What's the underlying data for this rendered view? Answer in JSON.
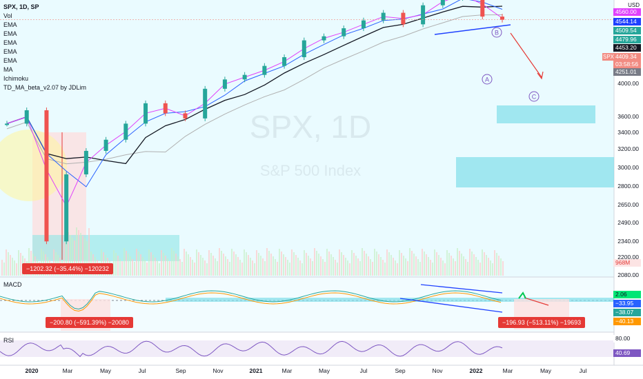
{
  "legend": {
    "symbol": "SPX, 1D, SP",
    "items": [
      "Vol",
      "EMA",
      "EMA",
      "EMA",
      "EMA",
      "EMA",
      "MA",
      "Ichimoku",
      "TD_MA_beta_v2.07 by JDLim"
    ]
  },
  "currency": "USD",
  "pane_labels": {
    "macd": "MACD",
    "rsi": "RSI"
  },
  "watermark": {
    "symbol": "SPX, 1D",
    "name": "S&P 500 Index"
  },
  "annotations": {
    "wave_a": "A",
    "wave_b": "B",
    "wave_c": "C"
  },
  "measure_boxes": {
    "price": "−1202.32 (−35.44%) −120232",
    "macd_left": "−200.80 (−591.39%) −20080",
    "macd_right": "−196.93 (−513.11%) −19693"
  },
  "price_tags": [
    {
      "text": "4560.00",
      "color": "#e040fb"
    },
    {
      "text": "4544.14",
      "color": "#1e40ff"
    },
    {
      "text": "4509.54",
      "color": "#26a69a"
    },
    {
      "text": "4479.96",
      "color": "#26a69a"
    },
    {
      "text": "4453.20",
      "color": "#131722"
    },
    {
      "text": "4409.34",
      "color": "#f28b82"
    },
    {
      "text": "03:58:56",
      "color": "#f28b82"
    },
    {
      "text": "4251.01",
      "color": "#787b86"
    },
    {
      "text": "968M",
      "color": "#fce4e4"
    }
  ],
  "spx_tag": "SPX",
  "macd_tags": [
    {
      "text": "2.06",
      "color": "#00e676"
    },
    {
      "text": "−33.95",
      "color": "#2962ff"
    },
    {
      "text": "−38.07",
      "color": "#26a69a"
    },
    {
      "text": "−40.13",
      "color": "#ff9800"
    }
  ],
  "rsi_tags": [
    {
      "text": "80.00",
      "color": "#ffffff"
    },
    {
      "text": "40.69",
      "color": "#7e57c2"
    }
  ],
  "y_axis_labels": [
    "4000.00",
    "3600.00",
    "3400.00",
    "3200.00",
    "3000.00",
    "2800.00",
    "2650.00",
    "2490.00",
    "2340.00",
    "2200.00",
    "2080.00"
  ],
  "x_axis_labels": [
    "2020",
    "Mar",
    "May",
    "Jul",
    "Sep",
    "Nov",
    "2021",
    "Mar",
    "May",
    "Jul",
    "Sep",
    "Nov",
    "2022",
    "Mar",
    "May",
    "Jul"
  ],
  "chart_data": {
    "type": "line",
    "title": "SPX, 1D, SP",
    "ylabel": "USD",
    "y_scale": "log",
    "ylim": [
      2080,
      4560
    ],
    "x": [
      "2020-01",
      "2020-02",
      "2020-03",
      "2020-04",
      "2020-05",
      "2020-06",
      "2020-07",
      "2020-08",
      "2020-09",
      "2020-10",
      "2020-11",
      "2020-12",
      "2021-01",
      "2021-02",
      "2021-03",
      "2021-04",
      "2021-05",
      "2021-06",
      "2021-07",
      "2021-08",
      "2021-09",
      "2021-10",
      "2021-11",
      "2021-12",
      "2022-01",
      "2022-02"
    ],
    "series": [
      {
        "values": [
          3250,
          3380,
          2300,
          2800,
          3000,
          3100,
          3250,
          3450,
          3350,
          3300,
          3600,
          3700,
          3750,
          3850,
          3950,
          4150,
          4200,
          4300,
          4400,
          4500,
          4350,
          4600,
          4700,
          4780,
          4450,
          4409
        ]
      }
    ],
    "last_value": 4409.34,
    "x_tick_labels": [
      "2020",
      "Mar",
      "May",
      "Jul",
      "Sep",
      "Nov",
      "2021",
      "Mar",
      "May",
      "Jul",
      "Sep",
      "Nov",
      "2022",
      "Mar",
      "May",
      "Jul"
    ]
  }
}
